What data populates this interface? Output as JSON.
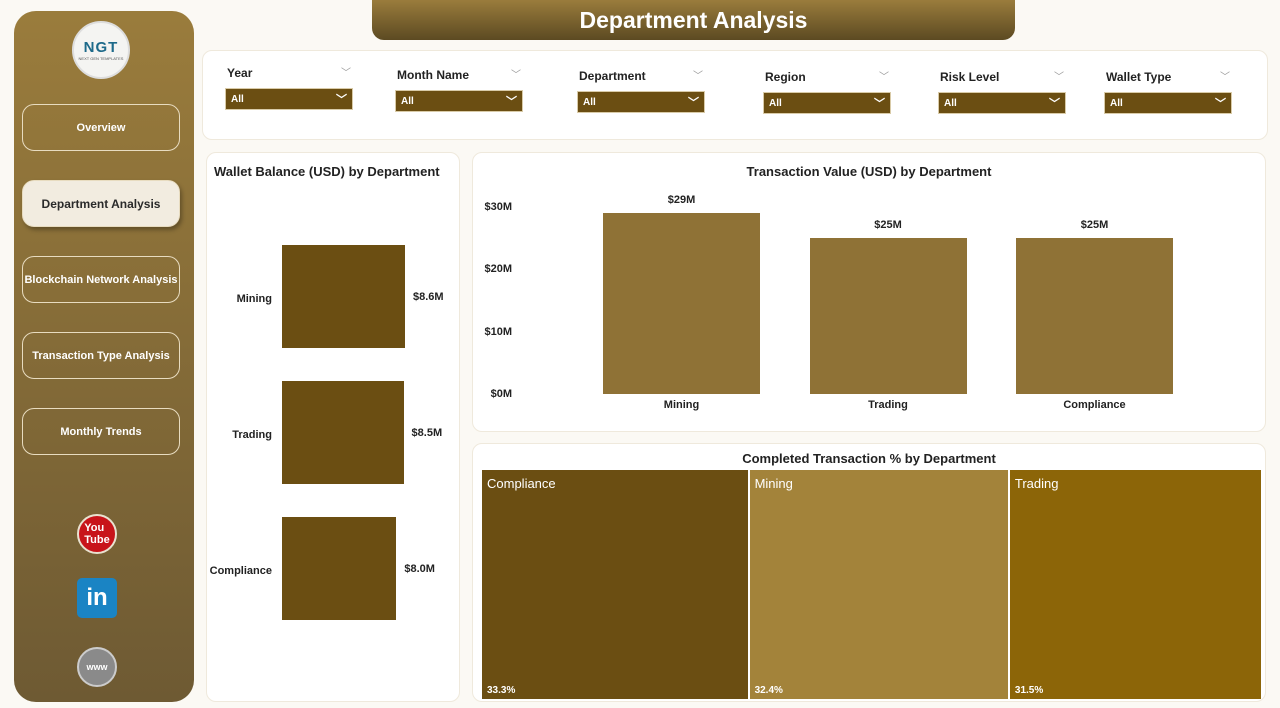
{
  "title": "Department Analysis",
  "sidebar": {
    "logo_text": "NGT",
    "logo_sub": "NEXT GEN TEMPLATES",
    "items": [
      {
        "label": "Overview"
      },
      {
        "label": "Department Analysis",
        "active": true
      },
      {
        "label": "Blockchain Network Analysis"
      },
      {
        "label": "Transaction Type Analysis"
      },
      {
        "label": "Monthly Trends"
      }
    ],
    "social": [
      "youtube-icon",
      "linkedin-icon",
      "www-icon"
    ]
  },
  "filters": [
    {
      "label": "Year",
      "value": "All"
    },
    {
      "label": "Month Name",
      "value": "All"
    },
    {
      "label": "Department",
      "value": "All"
    },
    {
      "label": "Region",
      "value": "All"
    },
    {
      "label": "Risk Level",
      "value": "All"
    },
    {
      "label": "Wallet Type",
      "value": "All"
    }
  ],
  "colors": {
    "accent": "#6b4e12",
    "sidebar": "#9a7c3c"
  },
  "chart_data": [
    {
      "type": "bar",
      "orientation": "horizontal",
      "title": "Wallet Balance (USD) by Department",
      "categories": [
        "Mining",
        "Trading",
        "Compliance"
      ],
      "values": [
        8.6,
        8.5,
        8.0
      ],
      "data_labels": [
        "$8.6M",
        "$8.5M",
        "$8.0M"
      ],
      "unit": "USD millions"
    },
    {
      "type": "bar",
      "title": "Transaction Value (USD) by Department",
      "categories": [
        "Mining",
        "Trading",
        "Compliance"
      ],
      "values": [
        29,
        25,
        25
      ],
      "data_labels": [
        "$29M",
        "$25M",
        "$25M"
      ],
      "yticks": [
        "$0M",
        "$10M",
        "$20M",
        "$30M"
      ],
      "ylim": [
        0,
        30
      ]
    },
    {
      "type": "treemap",
      "title": "Completed Transaction % by Department",
      "categories": [
        "Compliance",
        "Mining",
        "Trading"
      ],
      "values": [
        33.3,
        32.4,
        31.5
      ],
      "data_labels": [
        "33.3%",
        "32.4%",
        "31.5%"
      ],
      "colors": [
        "#6b4e12",
        "#a3833a",
        "#8c6508"
      ]
    }
  ]
}
